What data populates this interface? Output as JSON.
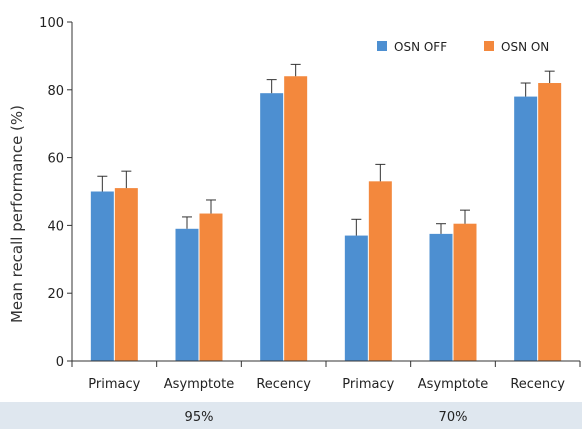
{
  "chart_data": {
    "type": "bar",
    "ylabel": "Mean recall performance (%)",
    "ylim": [
      0,
      100
    ],
    "yticks": [
      0,
      20,
      40,
      60,
      80,
      100
    ],
    "grid": false,
    "legend_position": "top-right",
    "categories": [
      "Primacy",
      "Asymptote",
      "Recency",
      "Primacy",
      "Asymptote",
      "Recency"
    ],
    "groups": [
      {
        "label": "95%",
        "categories": [
          "Primacy",
          "Asymptote",
          "Recency"
        ]
      },
      {
        "label": "70%",
        "categories": [
          "Primacy",
          "Asymptote",
          "Recency"
        ]
      }
    ],
    "series": [
      {
        "name": "OSN OFF",
        "color": "#4d8fd1",
        "values": [
          50,
          39,
          79,
          37,
          37.5,
          78
        ],
        "errors": [
          4.5,
          3.5,
          4,
          4.8,
          3,
          4
        ]
      },
      {
        "name": "OSN ON",
        "color": "#f3883d",
        "values": [
          51,
          43.5,
          84,
          53,
          40.5,
          82
        ],
        "errors": [
          5,
          4,
          3.5,
          5,
          4,
          3.5
        ]
      }
    ]
  }
}
